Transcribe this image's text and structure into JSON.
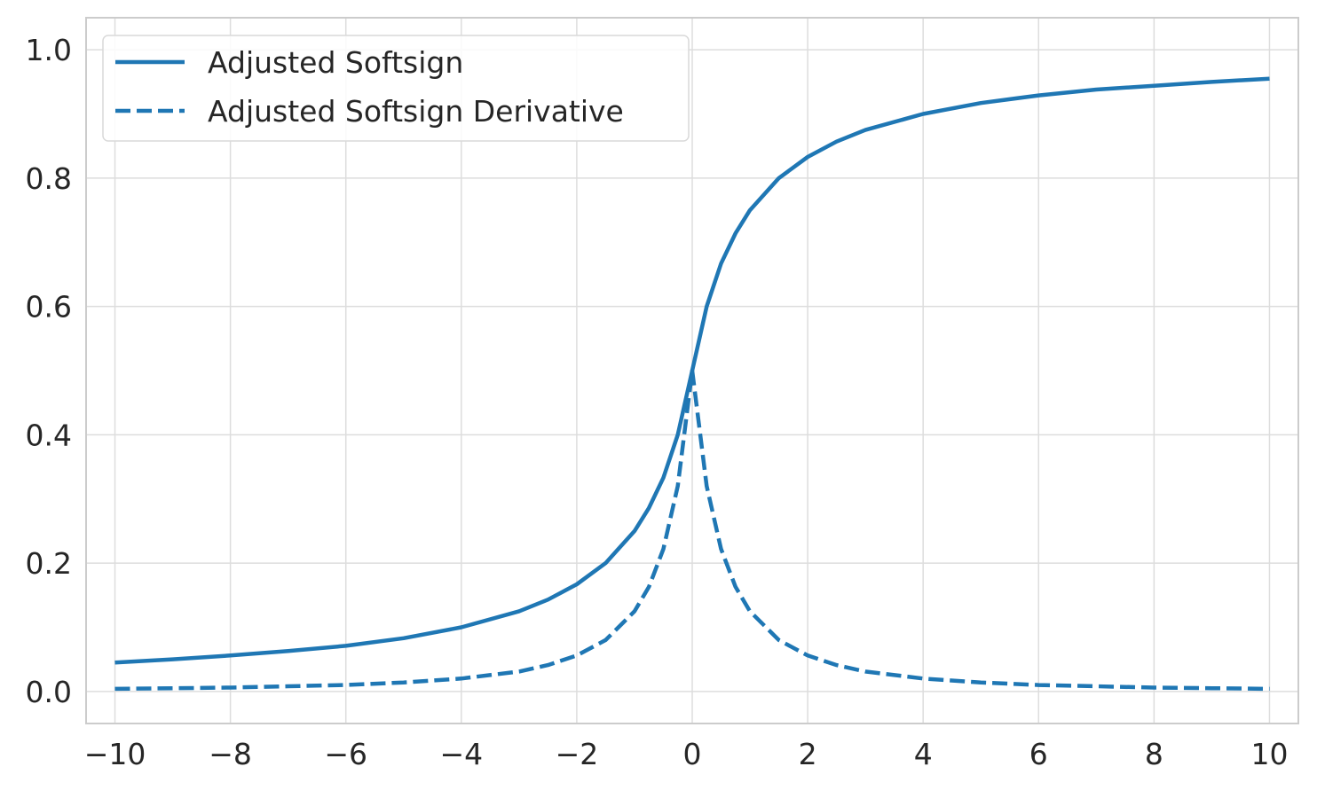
{
  "chart_data": {
    "type": "line",
    "title": "",
    "xlabel": "",
    "ylabel": "",
    "xlim": [
      -10.5,
      10.5
    ],
    "ylim": [
      -0.05,
      1.05
    ],
    "xticks": [
      -10,
      -8,
      -6,
      -4,
      -2,
      0,
      2,
      4,
      6,
      8,
      10
    ],
    "xtick_labels": [
      "−10",
      "−8",
      "−6",
      "−4",
      "−2",
      "0",
      "2",
      "4",
      "6",
      "8",
      "10"
    ],
    "yticks": [
      0.0,
      0.2,
      0.4,
      0.6,
      0.8,
      1.0
    ],
    "ytick_labels": [
      "0.0",
      "0.2",
      "0.4",
      "0.6",
      "0.8",
      "1.0"
    ],
    "grid": true,
    "legend_position": "top-left",
    "color": "#1f77b4",
    "series": [
      {
        "name": "Adjusted Softsign",
        "style": "solid",
        "x": [
          -10,
          -9,
          -8,
          -7,
          -6,
          -5,
          -4,
          -3,
          -2.5,
          -2,
          -1.5,
          -1,
          -0.75,
          -0.5,
          -0.25,
          0,
          0.25,
          0.5,
          0.75,
          1,
          1.5,
          2,
          2.5,
          3,
          4,
          5,
          6,
          7,
          8,
          9,
          10
        ],
        "y": [
          0.045,
          0.05,
          0.056,
          0.063,
          0.071,
          0.083,
          0.1,
          0.125,
          0.143,
          0.167,
          0.2,
          0.25,
          0.286,
          0.333,
          0.4,
          0.5,
          0.6,
          0.667,
          0.714,
          0.75,
          0.8,
          0.833,
          0.857,
          0.875,
          0.9,
          0.917,
          0.929,
          0.938,
          0.944,
          0.95,
          0.955
        ]
      },
      {
        "name": "Adjusted Softsign Derivative",
        "style": "dashed",
        "x": [
          -10,
          -9,
          -8,
          -7,
          -6,
          -5,
          -4,
          -3,
          -2.5,
          -2,
          -1.5,
          -1,
          -0.75,
          -0.5,
          -0.25,
          0,
          0.25,
          0.5,
          0.75,
          1,
          1.5,
          2,
          2.5,
          3,
          4,
          5,
          6,
          7,
          8,
          9,
          10
        ],
        "y": [
          0.004,
          0.005,
          0.006,
          0.008,
          0.01,
          0.014,
          0.02,
          0.031,
          0.041,
          0.056,
          0.08,
          0.125,
          0.163,
          0.222,
          0.32,
          0.5,
          0.32,
          0.222,
          0.163,
          0.125,
          0.08,
          0.056,
          0.041,
          0.031,
          0.02,
          0.014,
          0.01,
          0.008,
          0.006,
          0.005,
          0.004
        ]
      }
    ]
  }
}
